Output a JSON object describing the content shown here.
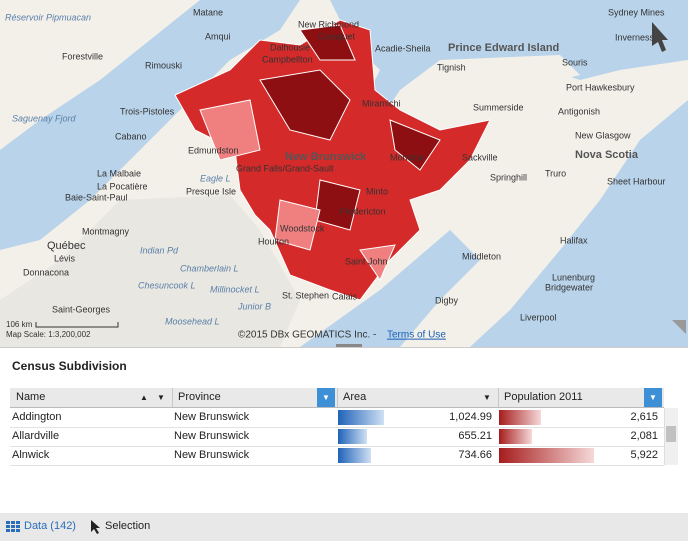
{
  "map": {
    "labels": [
      "Réservoir Pipmuacan",
      "Matane",
      "New Richmond",
      "Amqui",
      "Caraquet",
      "Acadie-Sheila",
      "Dalhousie",
      "Campbellton",
      "Prince Edward Island",
      "Sydney Mines",
      "Inverness",
      "Forestville",
      "Rimouski",
      "Tignish",
      "Souris",
      "Port Hawkesbury",
      "Summerside",
      "Antigonish",
      "Miramichi",
      "Trois-Pistoles",
      "Saguenay Fjord",
      "Cabano",
      "New Glasgow",
      "Edmundston",
      "Moncton",
      "Sackville",
      "Nova Scotia",
      "New Brunswick",
      "Grand Falls/Grand-Sault",
      "La Malbaie",
      "La Pocatière",
      "Baie-Saint-Paul",
      "Eagle L",
      "Springhill",
      "Truro",
      "Sheet Harbour",
      "Presque Isle",
      "Minto",
      "Fredericton",
      "Montmagny",
      "Woodstock",
      "Halifax",
      "Québec",
      "Lévis",
      "Houlton",
      "Indian Pd",
      "Saint John",
      "Middleton",
      "Donnacona",
      "Chamberlain L",
      "Chesuncook L",
      "Millinocket L",
      "Saint-Georges",
      "Lunenburg",
      "Bridgewater",
      "Digby",
      "Liverpool",
      "St. Stephen",
      "Calais",
      "Junior B",
      "Moosehead L"
    ],
    "scale_distance": "106 km",
    "scale_text": "Map Scale: 1:3,200,002",
    "copyright": "©2015 DBx GEOMATICS Inc. -",
    "terms": "Terms of Use"
  },
  "table": {
    "title": "Census Subdivision",
    "columns": [
      "Name",
      "Province",
      "Area",
      "Population 2011"
    ],
    "rows": [
      [
        "Addington",
        "New Brunswick",
        "1,024.99",
        "2,615"
      ],
      [
        "Allardville",
        "New Brunswick",
        "655.21",
        "2,081"
      ],
      [
        "Alnwick",
        "New Brunswick",
        "734.66",
        "5,922"
      ]
    ]
  },
  "tabs": [
    "Data (142)",
    "Selection"
  ]
}
